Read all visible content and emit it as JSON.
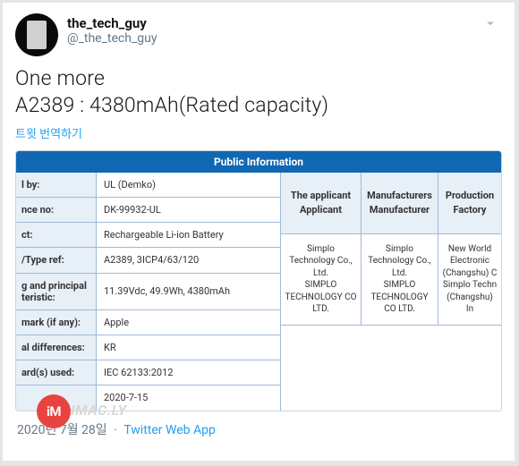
{
  "user": {
    "display_name": "the_tech_guy",
    "handle": "@_the_tech_guy"
  },
  "tweet": {
    "line1": "One more",
    "line2": "A2389 : 4380mAh(Rated capacity)"
  },
  "translate_label": "트윗 번역하기",
  "public_info_header": "Public Information",
  "left_rows": [
    {
      "label": "l by:",
      "value": "UL (Demko)"
    },
    {
      "label": "nce no:",
      "value": "DK-99932-UL"
    },
    {
      "label": "ct:",
      "value": "Rechargeable Li-ion Battery"
    },
    {
      "label": "/Type ref:",
      "value": "A2389, 3ICP4/63/120"
    },
    {
      "label": "g and principal teristic:",
      "value": "11.39Vdc, 49.9Wh, 4380mAh"
    },
    {
      "label": "mark (if any):",
      "value": "Apple"
    },
    {
      "label": "al differences:",
      "value": "KR"
    },
    {
      "label": "ard(s) used:",
      "value": "IEC 62133:2012"
    },
    {
      "label": "",
      "value": "2020-7-15"
    }
  ],
  "right_headers": [
    "The applicant\nApplicant",
    "Manufacturers\nManufacturer",
    "Production\nFactory"
  ],
  "right_cells": [
    "Simplo Technology Co., Ltd.\nSIMPLO TECHNOLOGY CO LTD.",
    "Simplo Technology Co., Ltd.\nSIMPLO TECHNOLOGY CO LTD.",
    "New World Electronic (Changshu) C\nSimplo Techn (Changshu) In"
  ],
  "watermark": {
    "circle": "iM",
    "text": "IMAC.LY"
  },
  "footer": {
    "time": "",
    "date": "2020년 7월 28일",
    "app": "Twitter Web App"
  },
  "colors": {
    "link": "#1da1f2",
    "header_bg": "#1068b3",
    "cell_bg": "#e7eff7",
    "border": "#9fb9d8"
  }
}
